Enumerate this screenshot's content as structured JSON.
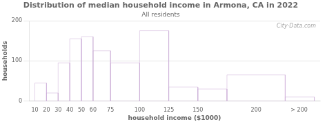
{
  "chart_data": {
    "type": "histogram",
    "title": "Distribution of median household income in Armona, CA in 2022",
    "subtitle": "All residents",
    "xlabel": "household income ($1000)",
    "ylabel": "households",
    "bins": [
      10,
      20,
      30,
      40,
      50,
      60,
      75,
      100,
      125,
      150,
      175,
      225,
      250
    ],
    "values": [
      45,
      20,
      95,
      155,
      160,
      125,
      95,
      175,
      35,
      30,
      65,
      10
    ],
    "color": "#c9a8d4",
    "xlim": [
      5,
      255
    ],
    "xticks": [
      10,
      20,
      30,
      40,
      50,
      60,
      75,
      100,
      125,
      150,
      200,
      {
        "value": 237,
        "label": "> 200"
      }
    ],
    "ylim": [
      0,
      200
    ],
    "yticks": [
      0,
      100,
      200
    ],
    "grid": true,
    "annotations": [
      "City-Data.com"
    ]
  }
}
